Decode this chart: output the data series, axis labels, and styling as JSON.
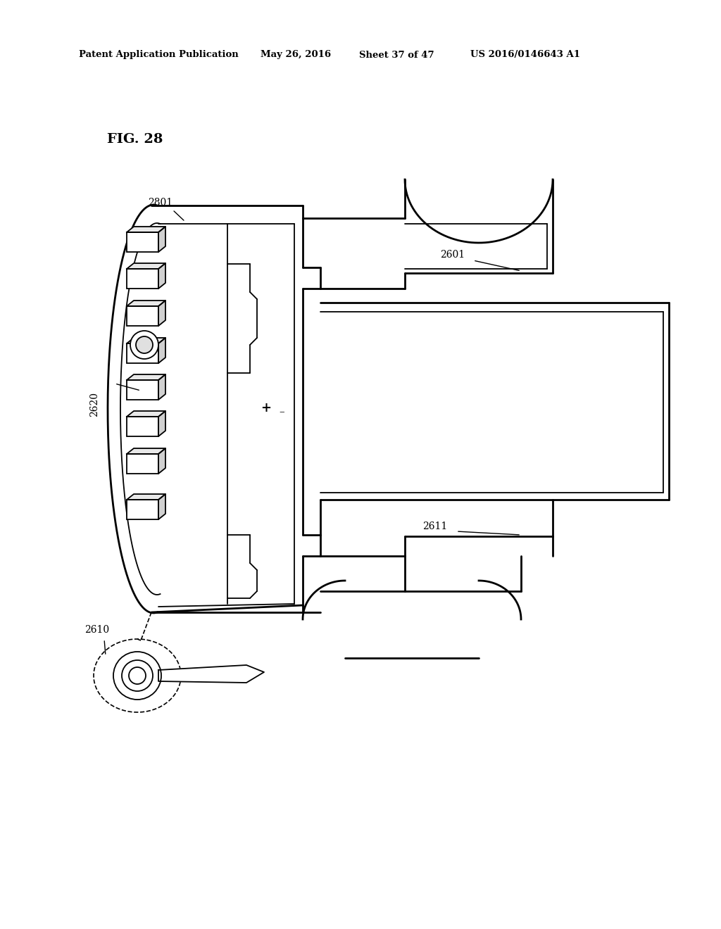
{
  "title_header": "Patent Application Publication",
  "date_header": "May 26, 2016",
  "sheet_header": "Sheet 37 of 47",
  "patent_header": "US 2016/0146643 A1",
  "fig_label": "FIG. 28",
  "bg_color": "#ffffff",
  "line_color": "#000000",
  "lw_thick": 2.0,
  "lw_thin": 1.3,
  "lw_dash": 1.2
}
